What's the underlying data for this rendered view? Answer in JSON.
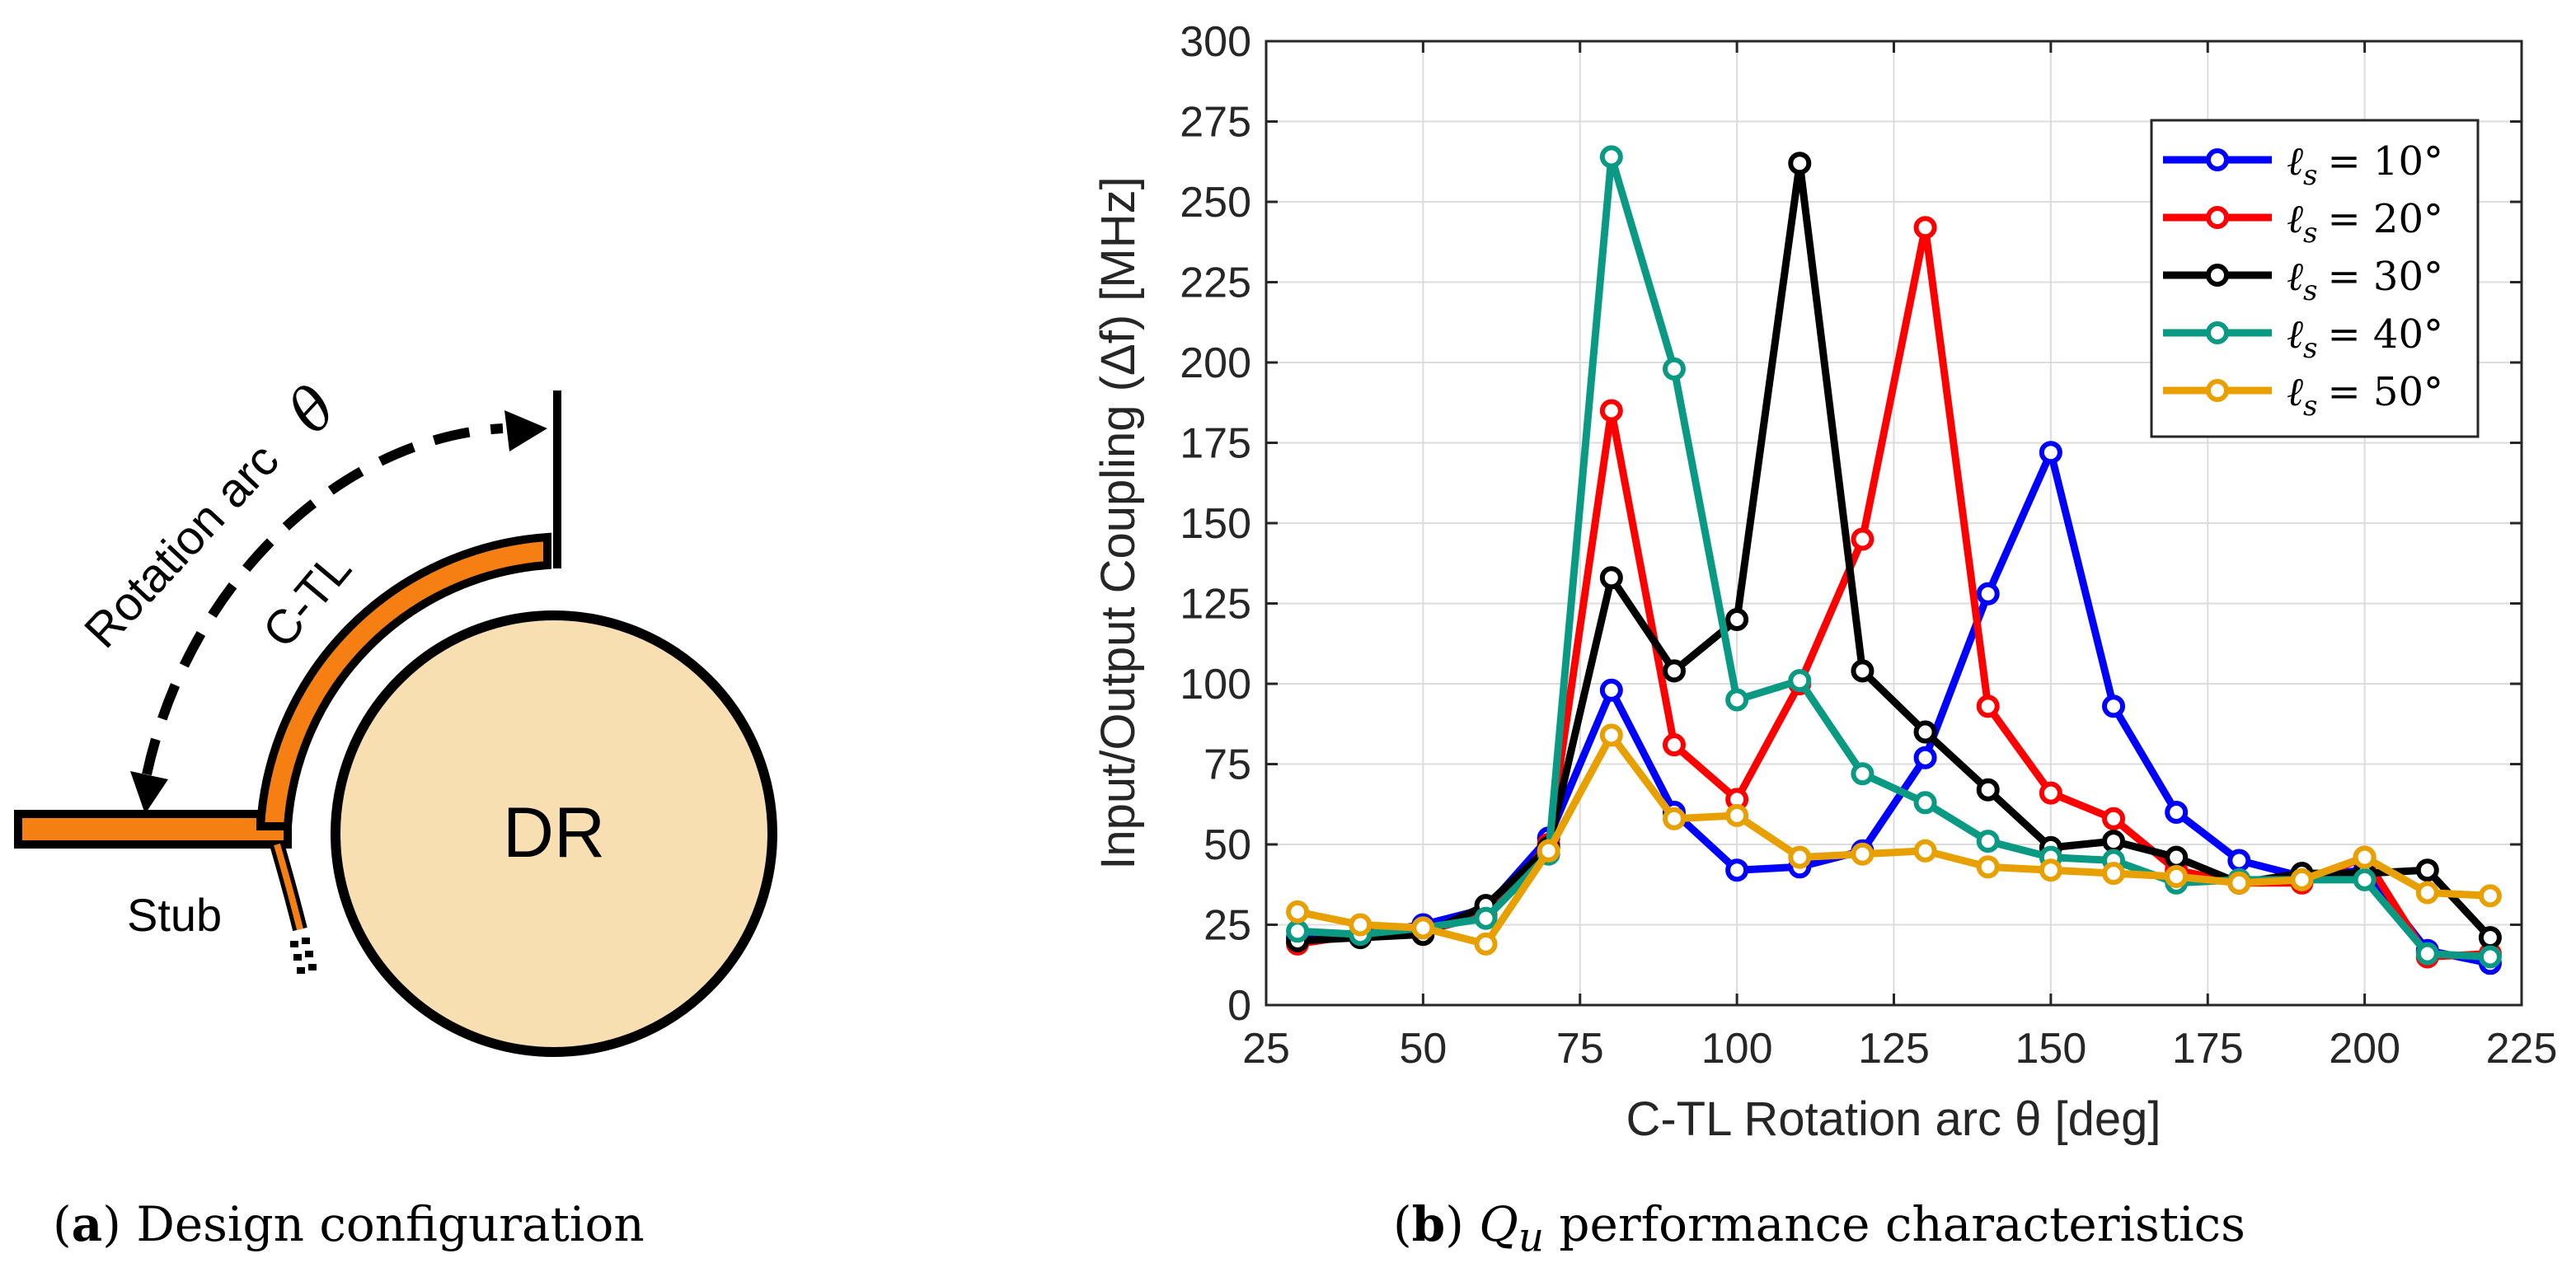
{
  "panel_a": {
    "labels": {
      "rotation_arc": "Rotation arc",
      "theta": "θ",
      "ctl": "C-TL",
      "stub": "Stub",
      "dr": "DR"
    },
    "colors": {
      "line": "#f57f12",
      "disk": "#f8dfb1",
      "stroke": "#000000"
    },
    "caption": {
      "letter": "a",
      "text": "Design configuration"
    }
  },
  "caption_b": {
    "letter": "b",
    "symbol": "Q",
    "subscript": "u",
    "text": "performance characteristics"
  },
  "chart_data": {
    "type": "line",
    "title": "",
    "xlabel": "C-TL Rotation arc θ [deg]",
    "ylabel": "Input/Output Coupling (Δf) [MHz]",
    "xlim": [
      25,
      225
    ],
    "ylim": [
      0,
      300
    ],
    "xticks": [
      25,
      50,
      75,
      100,
      125,
      150,
      175,
      200,
      225
    ],
    "yticks": [
      0,
      25,
      50,
      75,
      100,
      125,
      150,
      175,
      200,
      225,
      250,
      275,
      300
    ],
    "grid": true,
    "legend_position": "top-right",
    "x": [
      30,
      40,
      50,
      60,
      70,
      80,
      90,
      100,
      110,
      120,
      130,
      140,
      150,
      160,
      170,
      180,
      190,
      200,
      210,
      220
    ],
    "series": [
      {
        "name": "ℓs = 10°",
        "legend_var": "ℓ",
        "legend_sub": "s",
        "legend_rhs": "= 10°",
        "color": "#0000ff",
        "values": [
          21,
          22,
          25,
          30,
          52,
          98,
          60,
          42,
          43,
          48,
          77,
          128,
          172,
          93,
          60,
          45,
          40,
          42,
          17,
          13
        ]
      },
      {
        "name": "ℓs = 20°",
        "legend_var": "ℓ",
        "legend_sub": "s",
        "legend_rhs": "= 20°",
        "color": "#ff0000",
        "values": [
          19,
          22,
          23,
          28,
          50,
          185,
          81,
          64,
          100,
          145,
          242,
          93,
          66,
          58,
          42,
          38,
          38,
          46,
          15,
          16
        ]
      },
      {
        "name": "ℓs = 30°",
        "legend_var": "ℓ",
        "legend_sub": "s",
        "legend_rhs": "= 30°",
        "color": "#000000",
        "values": [
          20,
          21,
          22,
          31,
          49,
          133,
          104,
          120,
          262,
          104,
          85,
          67,
          49,
          51,
          46,
          38,
          41,
          41,
          42,
          21
        ]
      },
      {
        "name": "ℓs = 40°",
        "legend_var": "ℓ",
        "legend_sub": "s",
        "legend_rhs": "= 40°",
        "color": "#0a9a84",
        "values": [
          23,
          22,
          24,
          27,
          47,
          264,
          198,
          95,
          101,
          72,
          63,
          51,
          46,
          45,
          38,
          39,
          39,
          39,
          16,
          15
        ]
      },
      {
        "name": "ℓs = 50°",
        "legend_var": "ℓ",
        "legend_sub": "s",
        "legend_rhs": "= 50°",
        "color": "#e8a000",
        "values": [
          29,
          25,
          24,
          19,
          48,
          84,
          58,
          59,
          46,
          47,
          48,
          43,
          42,
          41,
          40,
          38,
          39,
          46,
          35,
          34
        ]
      }
    ]
  }
}
